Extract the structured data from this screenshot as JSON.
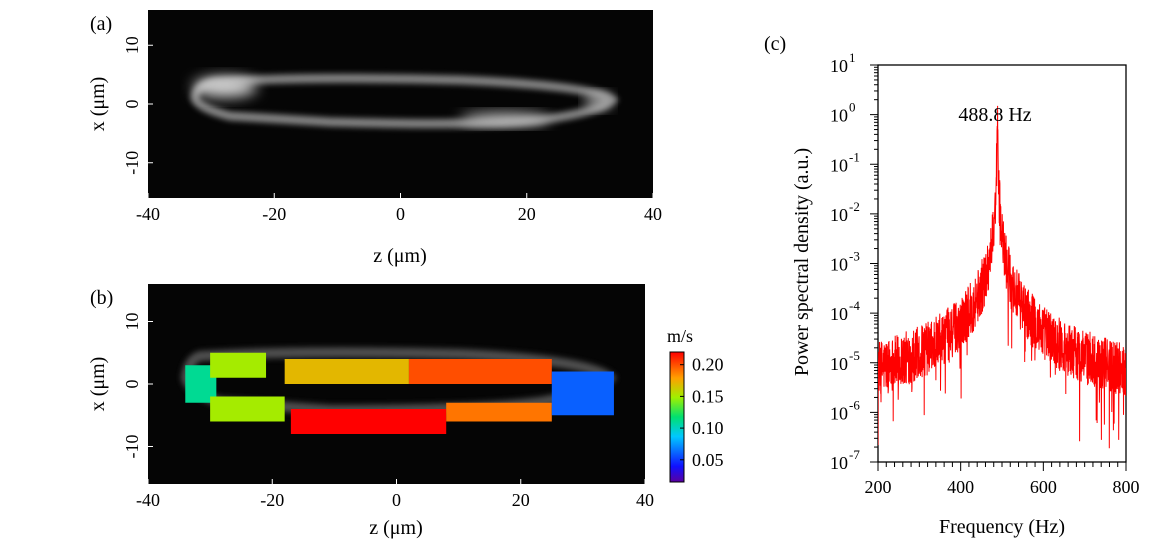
{
  "chart_data": [
    {
      "id": "a",
      "type": "heatmap",
      "panel_label": "(a)",
      "xlabel": "z (μm)",
      "ylabel": "x (μm)",
      "xlim": [
        -40,
        40
      ],
      "ylim": [
        -16,
        16
      ],
      "xticks": [
        "-40",
        "-20",
        "0",
        "20",
        "40"
      ],
      "yticks": [
        "10",
        "0",
        "-10"
      ],
      "colormap": "grayscale"
    },
    {
      "id": "b",
      "type": "heatmap",
      "panel_label": "(b)",
      "xlabel": "z (μm)",
      "ylabel": "x (μm)",
      "xlim": [
        -40,
        40
      ],
      "ylim": [
        -16,
        16
      ],
      "xticks": [
        "-40",
        "-20",
        "0",
        "20",
        "40"
      ],
      "yticks": [
        "10",
        "0",
        "-10"
      ],
      "colorbar": {
        "title": "m/s",
        "range": [
          0.015,
          0.22
        ],
        "ticks": [
          "0.20",
          "0.15",
          "0.10",
          "0.05"
        ],
        "colormap": "jet"
      },
      "segments": [
        {
          "z": [
            -34,
            -29
          ],
          "x": [
            -3,
            3
          ],
          "speed": 0.11
        },
        {
          "z": [
            -30,
            -21
          ],
          "x": [
            1,
            5
          ],
          "speed": 0.15
        },
        {
          "z": [
            -18,
            2
          ],
          "x": [
            0,
            4
          ],
          "speed": 0.17
        },
        {
          "z": [
            2,
            25
          ],
          "x": [
            0,
            4
          ],
          "speed": 0.2
        },
        {
          "z": [
            -30,
            -18
          ],
          "x": [
            -6,
            -2
          ],
          "speed": 0.15
        },
        {
          "z": [
            -17,
            8
          ],
          "x": [
            -8,
            -4
          ],
          "speed": 0.22
        },
        {
          "z": [
            8,
            25
          ],
          "x": [
            -6,
            -3
          ],
          "speed": 0.19
        },
        {
          "z": [
            25,
            35
          ],
          "x": [
            -5,
            2
          ],
          "speed": 0.06
        }
      ]
    },
    {
      "id": "c",
      "type": "line",
      "panel_label": "(c)",
      "xlabel": "Frequency (Hz)",
      "ylabel": "Power spectral density (a.u.)",
      "xlim": [
        200,
        800
      ],
      "ylim": [
        1e-07,
        10
      ],
      "yscale": "log",
      "xticks": [
        "200",
        "400",
        "600",
        "800"
      ],
      "yticks": [
        {
          "base": "10",
          "exp": "1"
        },
        {
          "base": "10",
          "exp": "0"
        },
        {
          "base": "10",
          "exp": "-1"
        },
        {
          "base": "10",
          "exp": "-2"
        },
        {
          "base": "10",
          "exp": "-3"
        },
        {
          "base": "10",
          "exp": "-4"
        },
        {
          "base": "10",
          "exp": "-5"
        },
        {
          "base": "10",
          "exp": "-6"
        },
        {
          "base": "10",
          "exp": "-7"
        }
      ],
      "peak_frequency": 488.8,
      "peak_value": 0.55,
      "noise_floor": 2e-06,
      "annotation": "488.8 Hz",
      "color": "#ff0000",
      "grid": false
    }
  ]
}
